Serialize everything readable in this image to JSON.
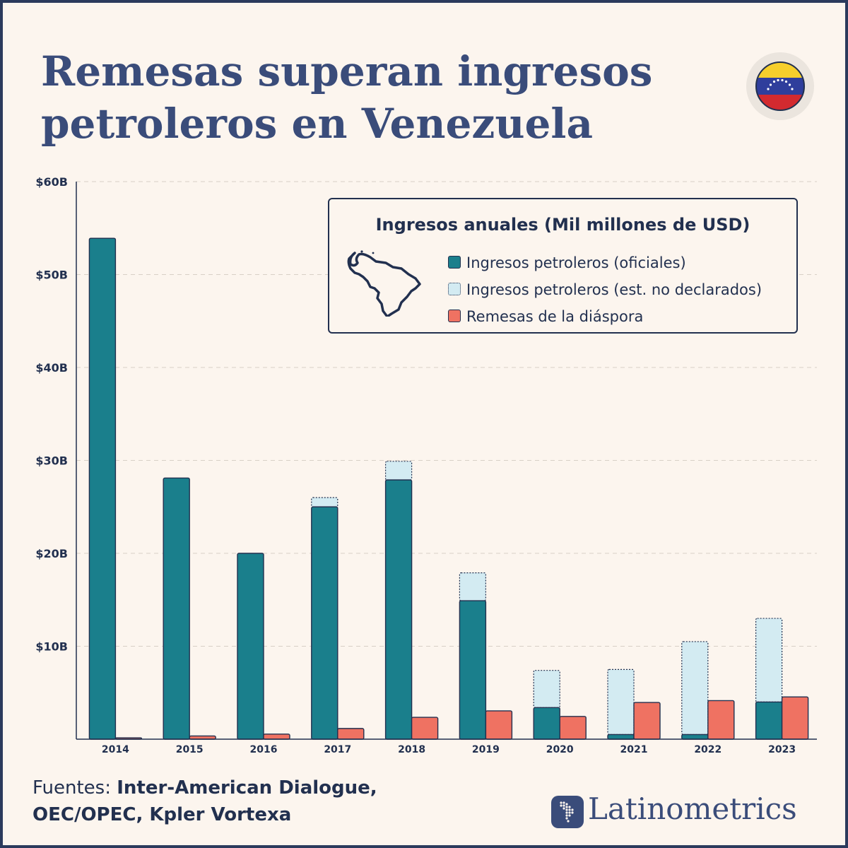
{
  "title_lines": [
    "Remesas superan ingresos",
    "petroleros en Venezuela"
  ],
  "legend": {
    "title": "Ingresos anuales (Mil millones de USD)",
    "items": [
      {
        "label": "Ingresos petroleros (oficiales)",
        "color": "#1a7f8c"
      },
      {
        "label": "Ingresos petroleros (est. no declarados)",
        "color": "#d3ebf2"
      },
      {
        "label": "Remesas de la diáspora",
        "color": "#ef7262"
      }
    ]
  },
  "sources": {
    "prefix": "Fuentes: ",
    "line1": "Inter-American Dialogue,",
    "line2": "OEC/OPEC, Kpler Vortexa"
  },
  "brand": {
    "name": "Latinometrics"
  },
  "icons": {
    "flag": "venezuela-flag-icon",
    "map": "venezuela-map-icon",
    "logo": "latinometrics-logo-icon"
  },
  "colors": {
    "title": "#3a4c7a",
    "ink": "#22304f",
    "background": "#fcf5ee"
  },
  "chart_data": {
    "type": "bar",
    "categories": [
      "2014",
      "2015",
      "2016",
      "2017",
      "2018",
      "2019",
      "2020",
      "2021",
      "2022",
      "2023"
    ],
    "series": [
      {
        "name": "Ingresos petroleros (oficiales)",
        "values": [
          53.9,
          28.1,
          20.0,
          25.0,
          27.9,
          14.9,
          3.4,
          0.5,
          0.5,
          4.0
        ]
      },
      {
        "name": "Ingresos petroleros (est. no declarados)",
        "values": [
          0,
          0,
          0,
          1.0,
          2.0,
          3.0,
          4.0,
          7.0,
          10.0,
          9.0
        ]
      },
      {
        "name": "Remesas de la diáspora",
        "values": [
          0.15,
          0.35,
          0.55,
          1.15,
          2.35,
          3.05,
          2.45,
          3.95,
          4.15,
          4.55
        ]
      }
    ],
    "stacked_series": [
      0,
      1
    ],
    "y_ticks": [
      "$10B",
      "$20B",
      "$30B",
      "$40B",
      "$50B",
      "$60B"
    ],
    "ylim": [
      0,
      60
    ],
    "grid": true,
    "legend_position": "top-right"
  }
}
